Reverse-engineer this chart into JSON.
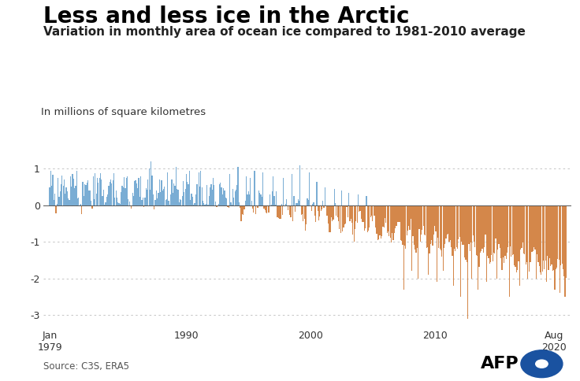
{
  "title": "Less and less ice in the Arctic",
  "subtitle": "Variation in monthly area of ocean ice compared to 1981-2010 average",
  "ylabel": "In millions of square kilometres",
  "source": "Source: C3S, ERA5",
  "color_positive": "#7aadd4",
  "color_negative": "#d4874a",
  "color_zero_line": "#888888",
  "ylim": [
    -3.35,
    1.45
  ],
  "yticks": [
    -3,
    -2,
    -1,
    0,
    1
  ],
  "background_color": "#ffffff",
  "grid_color": "#bbbbbb",
  "afp_dot_color": "#1a52a0",
  "title_fontsize": 20,
  "subtitle_fontsize": 11,
  "ylabel_fontsize": 9.5,
  "tick_fontsize": 9,
  "source_fontsize": 8.5
}
